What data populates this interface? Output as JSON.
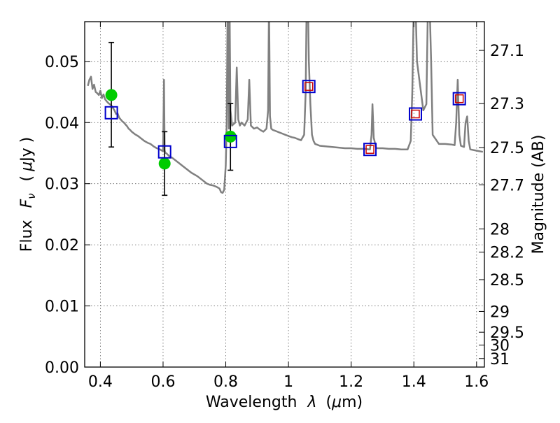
{
  "chart_data": {
    "type": "scatter",
    "title": "",
    "xlabel_text": "Wavelength",
    "xlabel_symbol": "λ",
    "xlabel_unit_open": "(",
    "xlabel_unit_mu": "μ",
    "xlabel_unit_rest": "m)",
    "ylabel_text": "Flux",
    "ylabel_symbol_main": "F",
    "ylabel_symbol_sub": "ν",
    "ylabel_paren_open": "(",
    "ylabel_unit_mu": "μ",
    "ylabel_unit_rest": "Jy )",
    "y2label": "Magnitude (AB)",
    "xlim": [
      0.35,
      1.625
    ],
    "ylim": [
      0.0,
      0.0565
    ],
    "grid": true,
    "x_ticks": [
      0.4,
      0.6,
      0.8,
      1.0,
      1.2,
      1.4,
      1.6
    ],
    "x_tick_labels": [
      "0.4",
      "0.6",
      "0.8",
      "1",
      "1.2",
      "1.4",
      "1.6"
    ],
    "y_ticks": [
      0.0,
      0.01,
      0.02,
      0.03,
      0.04,
      0.05
    ],
    "y_tick_labels": [
      "0.00",
      "0.01",
      "0.02",
      "0.03",
      "0.04",
      "0.05"
    ],
    "y2_ticks": [
      {
        "label": "27.1",
        "flux": 0.0518
      },
      {
        "label": "27.3",
        "flux": 0.0431
      },
      {
        "label": "27.5",
        "flux": 0.0359
      },
      {
        "label": "27.7",
        "flux": 0.0298
      },
      {
        "label": "28",
        "flux": 0.0226
      },
      {
        "label": "28.2",
        "flux": 0.0188
      },
      {
        "label": "28.5",
        "flux": 0.0143
      },
      {
        "label": "29",
        "flux": 0.0091
      },
      {
        "label": "29.5",
        "flux": 0.0057
      },
      {
        "label": "30",
        "flux": 0.0036
      },
      {
        "label": "31",
        "flux": 0.0014
      }
    ],
    "colors": {
      "spectrum": "#808080",
      "observed": "#00cc00",
      "model_box": "#0000cc",
      "model_inner": "#cc0000",
      "errorbar": "#000000",
      "grid": "#666666"
    },
    "series": [
      {
        "kind": "line",
        "x": [
          0.36,
          0.365,
          0.37,
          0.375,
          0.38,
          0.385,
          0.39,
          0.395,
          0.4,
          0.405,
          0.41,
          0.415,
          0.42,
          0.425,
          0.43,
          0.435,
          0.44,
          0.445,
          0.45,
          0.455,
          0.46,
          0.465,
          0.47,
          0.475,
          0.48,
          0.485,
          0.49,
          0.495,
          0.5,
          0.51,
          0.52,
          0.53,
          0.54,
          0.55,
          0.56,
          0.57,
          0.58,
          0.59,
          0.6,
          0.603,
          0.605,
          0.607,
          0.61,
          0.62,
          0.63,
          0.64,
          0.65,
          0.66,
          0.67,
          0.68,
          0.69,
          0.7,
          0.71,
          0.72,
          0.73,
          0.74,
          0.75,
          0.76,
          0.77,
          0.78,
          0.785,
          0.79,
          0.795,
          0.8,
          0.803,
          0.806,
          0.808,
          0.81,
          0.812,
          0.815,
          0.82,
          0.83,
          0.835,
          0.84,
          0.845,
          0.85,
          0.86,
          0.87,
          0.875,
          0.88,
          0.89,
          0.9,
          0.91,
          0.92,
          0.93,
          0.935,
          0.938,
          0.941,
          0.945,
          0.95,
          0.96,
          0.97,
          0.98,
          0.99,
          1.0,
          1.01,
          1.02,
          1.03,
          1.04,
          1.05,
          1.055,
          1.058,
          1.062,
          1.065,
          1.07,
          1.075,
          1.08,
          1.085,
          1.09,
          1.1,
          1.12,
          1.14,
          1.16,
          1.18,
          1.2,
          1.22,
          1.24,
          1.26,
          1.265,
          1.268,
          1.272,
          1.28,
          1.3,
          1.32,
          1.34,
          1.36,
          1.38,
          1.39,
          1.395,
          1.4,
          1.405,
          1.41,
          1.43,
          1.44,
          1.445,
          1.45,
          1.455,
          1.46,
          1.48,
          1.5,
          1.52,
          1.53,
          1.535,
          1.54,
          1.545,
          1.55,
          1.56,
          1.565,
          1.57,
          1.575,
          1.58,
          1.6,
          1.62
        ],
        "y": [
          0.046,
          0.047,
          0.0475,
          0.0455,
          0.0462,
          0.045,
          0.0448,
          0.0445,
          0.0452,
          0.044,
          0.0446,
          0.0438,
          0.0435,
          0.0432,
          0.043,
          0.0428,
          0.0424,
          0.042,
          0.0414,
          0.0415,
          0.0408,
          0.0405,
          0.0402,
          0.04,
          0.0397,
          0.0394,
          0.039,
          0.0388,
          0.0385,
          0.0381,
          0.0378,
          0.0374,
          0.037,
          0.0367,
          0.0365,
          0.0361,
          0.0358,
          0.0356,
          0.0353,
          0.047,
          0.0355,
          0.035,
          0.035,
          0.0345,
          0.0342,
          0.0338,
          0.0334,
          0.033,
          0.0326,
          0.0322,
          0.0318,
          0.0315,
          0.0312,
          0.0308,
          0.0304,
          0.03,
          0.0298,
          0.0297,
          0.0295,
          0.0292,
          0.0286,
          0.0285,
          0.029,
          0.033,
          0.04,
          0.06,
          0.05,
          0.039,
          0.06,
          0.042,
          0.0395,
          0.04,
          0.049,
          0.0405,
          0.0395,
          0.04,
          0.0395,
          0.0405,
          0.047,
          0.0395,
          0.039,
          0.0392,
          0.0388,
          0.0385,
          0.039,
          0.042,
          0.06,
          0.041,
          0.039,
          0.0388,
          0.0386,
          0.0384,
          0.0382,
          0.038,
          0.0378,
          0.0376,
          0.0375,
          0.0373,
          0.0371,
          0.038,
          0.045,
          0.06,
          0.06,
          0.05,
          0.043,
          0.038,
          0.037,
          0.0365,
          0.0364,
          0.0362,
          0.0361,
          0.036,
          0.0359,
          0.0358,
          0.0358,
          0.0357,
          0.0357,
          0.0356,
          0.038,
          0.043,
          0.0375,
          0.0358,
          0.0358,
          0.0357,
          0.0357,
          0.0356,
          0.0356,
          0.037,
          0.045,
          0.06,
          0.06,
          0.05,
          0.042,
          0.043,
          0.06,
          0.06,
          0.05,
          0.038,
          0.0365,
          0.0365,
          0.0364,
          0.0363,
          0.04,
          0.047,
          0.038,
          0.0362,
          0.036,
          0.04,
          0.041,
          0.037,
          0.0356,
          0.0354,
          0.0352
        ]
      },
      {
        "kind": "errorbar",
        "name": "observed",
        "points": [
          {
            "x": 0.435,
            "y": 0.0445,
            "lo": 0.036,
            "hi": 0.0531
          },
          {
            "x": 0.605,
            "y": 0.0333,
            "lo": 0.0281,
            "hi": 0.0385
          },
          {
            "x": 0.815,
            "y": 0.0377,
            "lo": 0.0322,
            "hi": 0.0431
          }
        ]
      },
      {
        "kind": "box",
        "name": "model",
        "points": [
          {
            "x": 0.435,
            "y": 0.0416,
            "inner": false
          },
          {
            "x": 0.605,
            "y": 0.0352,
            "inner": false
          },
          {
            "x": 0.815,
            "y": 0.0369,
            "inner": false
          },
          {
            "x": 1.065,
            "y": 0.0459,
            "inner": true
          },
          {
            "x": 1.26,
            "y": 0.0356,
            "inner": true
          },
          {
            "x": 1.405,
            "y": 0.0414,
            "inner": true
          },
          {
            "x": 1.545,
            "y": 0.0439,
            "inner": true
          }
        ]
      }
    ]
  }
}
